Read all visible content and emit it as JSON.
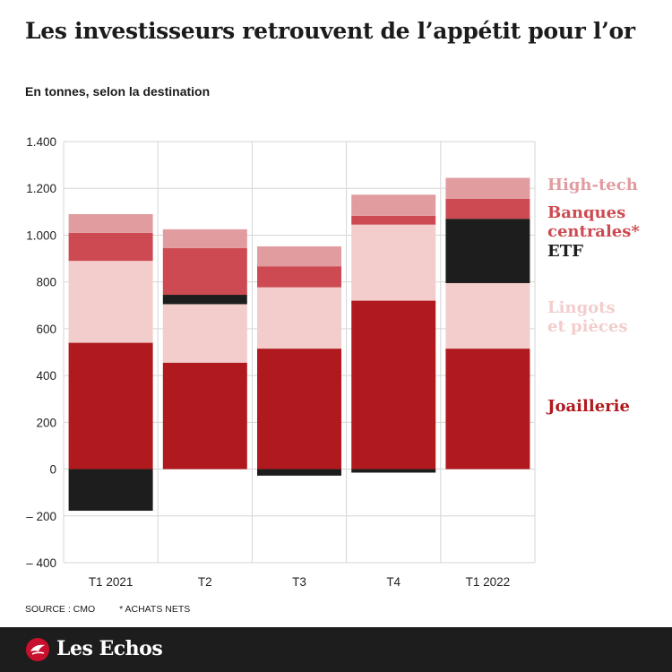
{
  "title": "Les investisseurs retrouvent de l’appétit pour l’or",
  "subtitle": "En tonnes, selon la destination",
  "source": "SOURCE : CMO",
  "note": "* ACHATS NETS",
  "brand": "Les Echos",
  "colors": {
    "joaillerie": "#b0191e",
    "lingots": "#f2cdcc",
    "etf": "#1d1d1d",
    "banques": "#cd4a52",
    "hightech": "#e19ca0"
  },
  "chart_data": {
    "type": "bar",
    "stacked": true,
    "categories": [
      "T1 2021",
      "T2",
      "T3",
      "T4",
      "T1 2022"
    ],
    "series": [
      {
        "name": "Joaillerie",
        "key": "joaillerie",
        "legend": [
          "Joaillerie"
        ],
        "values": [
          540,
          455,
          515,
          720,
          515
        ]
      },
      {
        "name": "Lingots et pièces",
        "key": "lingots",
        "legend": [
          "Lingots",
          "et pièces"
        ],
        "values": [
          350,
          250,
          262,
          325,
          280
        ]
      },
      {
        "name": "ETF",
        "key": "etf",
        "legend": [
          "ETF"
        ],
        "values": [
          -178,
          40,
          -28,
          -15,
          275
        ]
      },
      {
        "name": "Banques centrales*",
        "key": "banques",
        "legend": [
          "Banques",
          "centrales*"
        ],
        "values": [
          120,
          200,
          90,
          38,
          85
        ]
      },
      {
        "name": "High-tech",
        "key": "hightech",
        "legend": [
          "High-tech"
        ],
        "values": [
          80,
          80,
          85,
          90,
          90
        ]
      }
    ],
    "ylim": [
      -400,
      1400
    ],
    "yticks": [
      -400,
      -200,
      0,
      200,
      400,
      600,
      800,
      1000,
      1200,
      1400
    ],
    "ytick_labels": [
      "– 400",
      "– 200",
      "0",
      "200",
      "400",
      "600",
      "800",
      "1.000",
      "1.200",
      "1.400"
    ],
    "legend_position": "right",
    "grid": true
  }
}
